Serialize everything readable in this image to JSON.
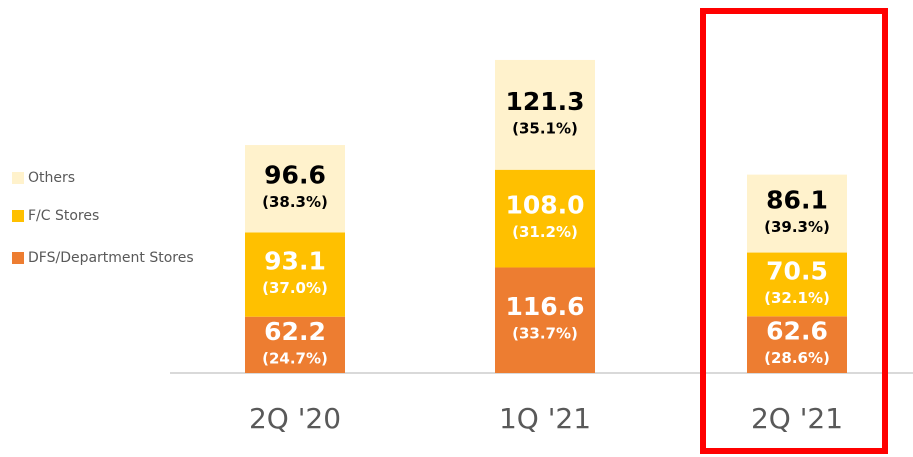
{
  "chart_data": {
    "type": "bar",
    "stacked": true,
    "categories": [
      "2Q '20",
      "1Q '21",
      "2Q '21"
    ],
    "series": [
      {
        "name": "DFS/Department Stores",
        "color": "#ED7D31",
        "text_color": "#ffffff",
        "values": [
          62.2,
          116.6,
          62.6
        ],
        "share_labels": [
          "(24.7%)",
          "(33.7%)",
          "(28.6%)"
        ]
      },
      {
        "name": "F/C Stores",
        "color": "#FFC000",
        "text_color": "#ffffff",
        "values": [
          93.1,
          108.0,
          70.5
        ],
        "value_labels": [
          "93.1",
          "108.0",
          "70.5"
        ],
        "share_labels": [
          "(37.0%)",
          "(31.2%)",
          "(32.1%)"
        ]
      },
      {
        "name": "Others",
        "color": "#FFF2CC",
        "text_color": "#000000",
        "values": [
          96.6,
          121.3,
          86.1
        ],
        "share_labels": [
          "(38.3%)",
          "(35.1%)",
          "(39.3%)"
        ]
      }
    ]
  }
}
